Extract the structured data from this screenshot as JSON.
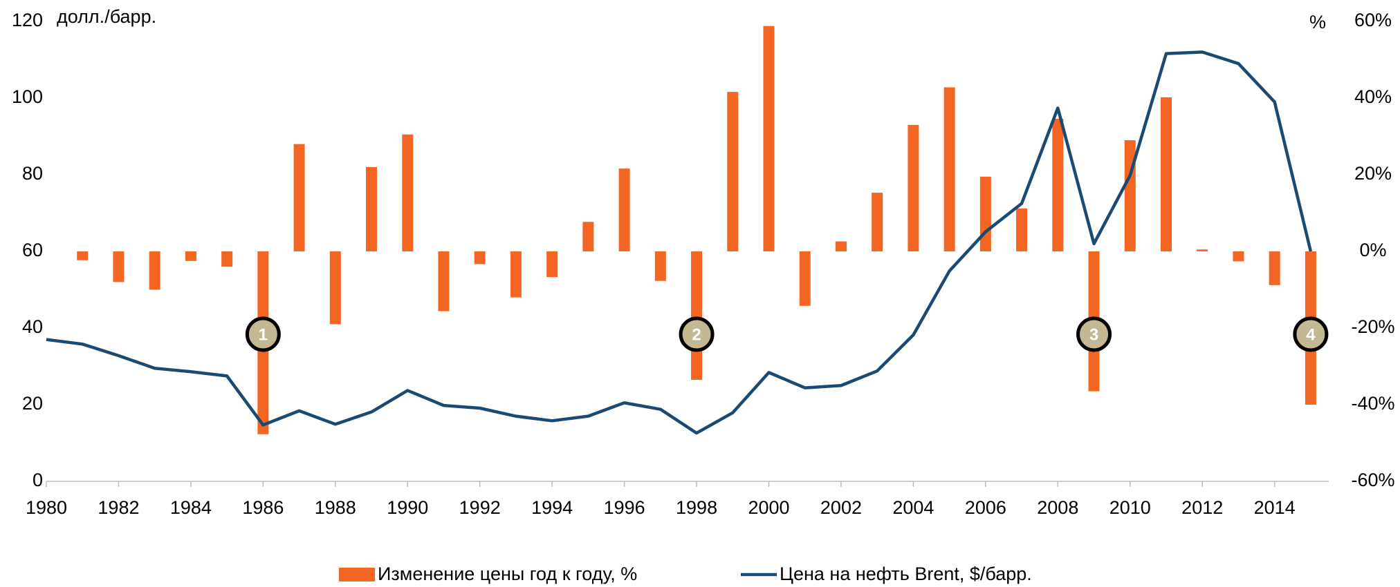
{
  "chart_data": {
    "type": "bar_line",
    "y_label": "долл./барр.",
    "y2_label": "%",
    "x": [
      1980,
      1981,
      1982,
      1983,
      1984,
      1985,
      1986,
      1987,
      1988,
      1989,
      1990,
      1991,
      1992,
      1993,
      1994,
      1995,
      1996,
      1997,
      1998,
      1999,
      2000,
      2001,
      2002,
      2003,
      2004,
      2005,
      2006,
      2007,
      2008,
      2009,
      2010,
      2011,
      2012,
      2013,
      2014,
      2015
    ],
    "series": [
      {
        "name": "Изменение цены год к году, %",
        "type": "bar",
        "axis": "y2",
        "color": "#f26522",
        "values": [
          null,
          -2.3,
          -8,
          -10,
          -2.5,
          -4,
          -47.7,
          28,
          -19,
          22,
          30.5,
          -15.6,
          -3.3,
          -12,
          -6.7,
          7.7,
          21.6,
          -7.7,
          -33.5,
          41.6,
          58.8,
          -14.2,
          2.6,
          15.3,
          33,
          42.8,
          19.5,
          11.2,
          34.6,
          -36.5,
          29,
          40.2,
          0.5,
          -2.6,
          -8.8,
          -40
        ]
      },
      {
        "name": "Цена на нефть Brent, $/барр.",
        "type": "line",
        "axis": "y",
        "color": "#1a4a72",
        "values": [
          37,
          35.8,
          32.8,
          29.5,
          28.6,
          27.5,
          14.7,
          18.4,
          14.9,
          18.1,
          23.7,
          19.8,
          19.1,
          17,
          15.8,
          17,
          20.5,
          18.8,
          12.6,
          17.9,
          28.4,
          24.4,
          25,
          28.8,
          38.2,
          54.9,
          65.1,
          72.5,
          97.4,
          62,
          79.8,
          111.6,
          112,
          109,
          99,
          60
        ]
      }
    ],
    "xlim": [
      1980,
      2015.5
    ],
    "xticks": [
      1980,
      1982,
      1984,
      1986,
      1988,
      1990,
      1992,
      1994,
      1996,
      1998,
      2000,
      2002,
      2004,
      2006,
      2008,
      2010,
      2012,
      2014
    ],
    "ylim": [
      0,
      120
    ],
    "yticks": [
      0,
      20,
      40,
      60,
      80,
      100,
      120
    ],
    "y2lim": [
      -60,
      60
    ],
    "y2ticks": [
      {
        "value": -60,
        "label": "-60%"
      },
      {
        "value": -40,
        "label": "-40%"
      },
      {
        "value": -20,
        "label": "-20%"
      },
      {
        "value": 0,
        "label": "0%"
      },
      {
        "value": 20,
        "label": "20%"
      },
      {
        "value": 40,
        "label": "40%"
      },
      {
        "value": 60,
        "label": "60%"
      }
    ],
    "annotations": [
      {
        "label": "1",
        "x": 1986
      },
      {
        "label": "2",
        "x": 1998
      },
      {
        "label": "3",
        "x": 2009
      },
      {
        "label": "4",
        "x": 2015
      }
    ]
  }
}
